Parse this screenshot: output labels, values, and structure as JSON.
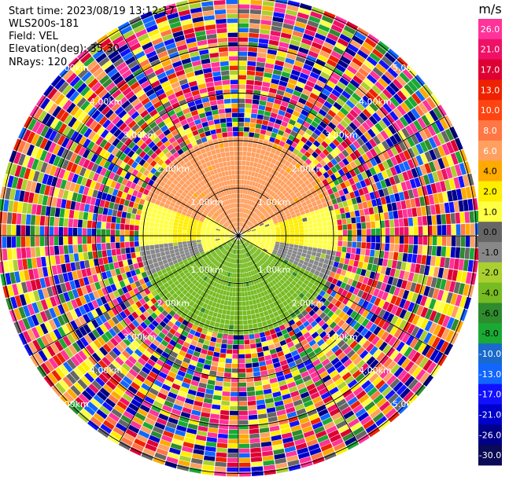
{
  "header": {
    "start_time": "Start time: 2023/08/19 13:12:17",
    "instrument": "WLS200s-181",
    "field": "Field: VEL",
    "elevation": "Elevation(deg): 35.30",
    "nrays": "NRays: 120"
  },
  "chart_data": {
    "type": "heatmap",
    "projection": "polar-ppi",
    "field": "VEL",
    "nrays": 120,
    "grid": true,
    "range_rings_km": [
      1.0,
      2.0,
      3.0,
      4.0,
      5.0
    ],
    "range_ring_labels": [
      "1.00km",
      "2.00km",
      "3.00km",
      "4.00km",
      "5.00km"
    ],
    "colorbar": {
      "unit": "m/s",
      "ticks": [
        "26.0",
        "21.0",
        "17.0",
        "13.0",
        "10.0",
        "8.0",
        "6.0",
        "4.0",
        "2.0",
        "1.0",
        "0.0",
        "-1.0",
        "-2.0",
        "-4.0",
        "-6.0",
        "-8.0",
        "-10.0",
        "-13.0",
        "-17.0",
        "-21.0",
        "-26.0",
        "-30.0"
      ],
      "colors": [
        "#ff3399",
        "#ee1166",
        "#dd0033",
        "#ee2200",
        "#ff4411",
        "#ff7744",
        "#ffa060",
        "#ffaa00",
        "#ffee00",
        "#ffff44",
        "#666666",
        "#888888",
        "#aad030",
        "#77bb22",
        "#2e8b2e",
        "#1aaa33",
        "#1a6acd",
        "#1166ff",
        "#1111ff",
        "#0000cc",
        "#000088",
        "#0a0a55"
      ]
    },
    "clean_region_velocity_ms": {
      "north": 4.0,
      "north_outer": 6.0,
      "east_west": 1.0,
      "center": 0.0,
      "south": -6.0
    }
  }
}
